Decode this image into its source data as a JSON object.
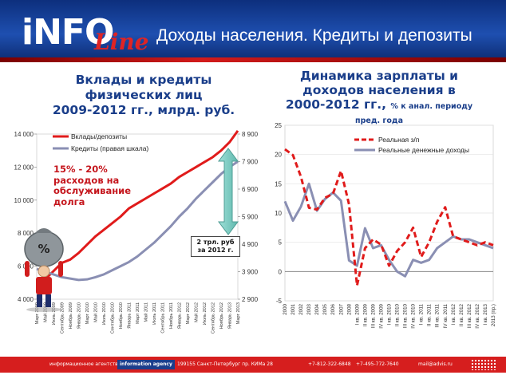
{
  "header": {
    "logo_info": "iNFO",
    "logo_line": "Line",
    "title": "Доходы населения. Кредиты и депозиты"
  },
  "left_panel": {
    "title_lines": [
      "Вклады и кредиты",
      "физических лиц",
      "2009-2012 гг., млрд. руб."
    ],
    "callout_debt": "15% - 20% расходов на обслуживание долга",
    "callout_credit_lines": [
      "2 трл. руб",
      "за 2012 г."
    ]
  },
  "right_panel": {
    "title_lines": [
      "Динамика зарплаты и",
      "доходов населения в",
      "2000-2012 гг.,"
    ],
    "title_unit_inline": "% к анал. периоду",
    "title_unit_line2": "пред. года"
  },
  "footer": {
    "agency_ru": "информационное агентство",
    "agency_en": "information agency",
    "address": "199155 Санкт-Петербург пр. КИМа 28",
    "phone1": "+7-812-322-6848",
    "phone2": "+7-495-772-7640",
    "email": "mail@advis.ru"
  },
  "colors": {
    "header_bg": "#1e4fb0",
    "header_line": "#d21b1b",
    "deposits": "#e01b1b",
    "credits": "#8a8fb3",
    "real_wage": "#e01b1b",
    "real_income": "#8a8fb3",
    "footer_bg": "#d61e1e"
  },
  "icons": [
    "debt-worker-icon",
    "double-arrow-icon"
  ],
  "chart_data": [
    {
      "type": "line",
      "ylim": [
        4000,
        14000
      ],
      "y2lim": [
        2900,
        8900
      ],
      "yticks": [
        "4 000",
        "6 000",
        "8 000",
        "10 000",
        "12 000",
        "14 000"
      ],
      "y2ticks": [
        "2 900",
        "3 900",
        "4 900",
        "5 900",
        "6 900",
        "7 900",
        "8 900"
      ],
      "ytick_values": [
        4000,
        6000,
        8000,
        10000,
        12000,
        14000
      ],
      "y2tick_values": [
        2900,
        3900,
        4900,
        5900,
        6900,
        7900,
        8900
      ],
      "categories": [
        "Март 2009",
        "Май 2009",
        "Июль 2009",
        "Сентябрь 2009",
        "Ноябрь 2009",
        "Январь 2010",
        "Март 2010",
        "Май 2010",
        "Июль 2010",
        "Сентябрь 2010",
        "Ноябрь 2010",
        "Январь 2011",
        "Март 2011",
        "Май 2011",
        "Июль 2011",
        "Сентябрь 2011",
        "Ноябрь 2011",
        "Январь 2012",
        "Март 2012",
        "Май 2012",
        "Июль 2012",
        "Сентябрь 2012",
        "Ноябрь 2012",
        "Январь 2013",
        "Март 2013"
      ],
      "series": [
        {
          "name": "Вклады/депозиты",
          "axis": "left",
          "values": [
            4500,
            5200,
            5700,
            6200,
            6400,
            6800,
            7300,
            7800,
            8200,
            8600,
            9000,
            9500,
            9800,
            10100,
            10400,
            10700,
            11000,
            11400,
            11700,
            12000,
            12300,
            12600,
            13000,
            13500,
            14200
          ]
        },
        {
          "name": "Кредиты (правая шкала)",
          "axis": "right",
          "values": [
            4000,
            3900,
            3800,
            3700,
            3650,
            3600,
            3620,
            3700,
            3800,
            3950,
            4100,
            4250,
            4450,
            4700,
            4950,
            5250,
            5550,
            5900,
            6200,
            6550,
            6850,
            7150,
            7450,
            7700,
            7900
          ]
        }
      ]
    },
    {
      "type": "line",
      "ylim": [
        -5,
        25
      ],
      "yticks": [
        "-5",
        "0",
        "5",
        "10",
        "15",
        "20",
        "25"
      ],
      "ytick_values": [
        -5,
        0,
        5,
        10,
        15,
        20,
        25
      ],
      "categories": [
        "2000",
        "2001",
        "2002",
        "2003",
        "2004",
        "2005",
        "2006",
        "2007",
        "2008",
        "I кв. 2009",
        "II кв. 2009",
        "III кв. 2009",
        "IV кв. 2009",
        "I кв. 2010",
        "II кв. 2010",
        "III кв. 2010",
        "IV кв. 2010",
        "I кв. 2011",
        "II кв. 2011",
        "III кв. 2011",
        "IV кв. 2011",
        "I кв. 2012",
        "II кв. 2012",
        "III кв. 2012",
        "IV кв. 2012",
        "I кв. 2013",
        "2013 (пр.)"
      ],
      "series": [
        {
          "name": "Реальная з/п",
          "style": "dashed",
          "values": [
            20.9,
            19.9,
            16.2,
            10.9,
            10.6,
            12.6,
            13.3,
            17.2,
            11.5,
            -2.4,
            4.0,
            5.5,
            4.6,
            1.0,
            3.5,
            5.0,
            7.5,
            2.5,
            5.0,
            8.5,
            11.0,
            6.0,
            5.5,
            5.0,
            4.5,
            5.0,
            4.5
          ]
        },
        {
          "name": "Реальные денежные доходы",
          "style": "solid",
          "values": [
            12.0,
            8.7,
            11.1,
            15.0,
            10.4,
            12.4,
            13.5,
            12.1,
            1.9,
            1.0,
            7.4,
            4.0,
            4.5,
            2.0,
            0.0,
            -0.8,
            2.0,
            1.5,
            2.0,
            4.0,
            5.0,
            6.0,
            5.5,
            5.5,
            5.0,
            4.5,
            4.0
          ]
        }
      ]
    }
  ]
}
